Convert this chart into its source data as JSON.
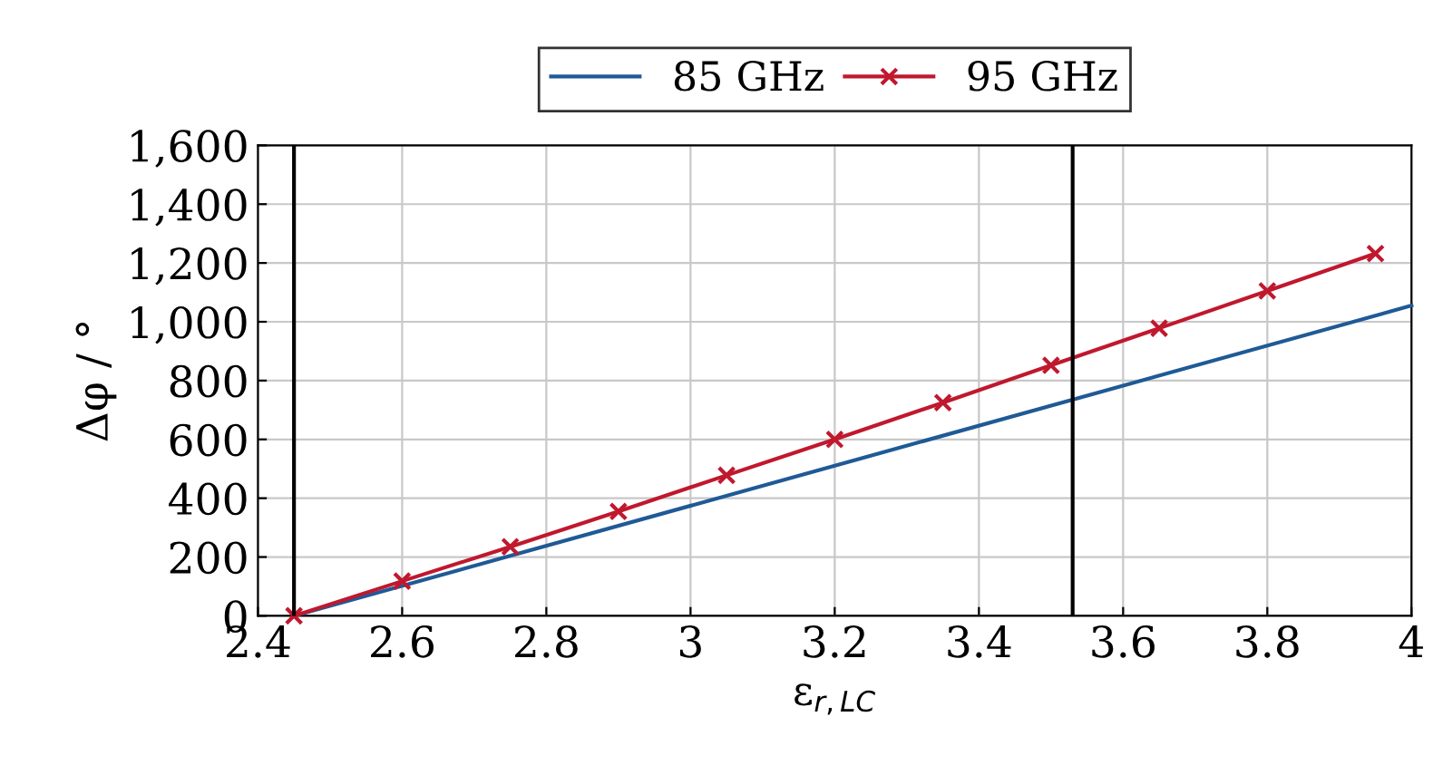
{
  "chart_data": {
    "type": "line",
    "xlabel": "ε$_{r,LC}$",
    "ylabel": "Δφ / °",
    "series": [
      {
        "name": "85 GHz",
        "color": "#1f5a96",
        "marker": "none",
        "x": [
          2.45,
          4
        ],
        "values": [
          0,
          1055
        ]
      },
      {
        "name": "95 GHz",
        "color": "#c0182e",
        "marker": "cross",
        "x": [
          2.45,
          2.6,
          2.75,
          2.9,
          3.05,
          3.2,
          3.35,
          3.5,
          3.65,
          3.8,
          3.95
        ],
        "values": [
          0,
          118,
          235,
          355,
          478,
          600,
          725,
          852,
          978,
          1105,
          1232
        ]
      }
    ],
    "xlim": [
      2.4,
      4
    ],
    "xticks": [
      2.4,
      2.6,
      2.8,
      3,
      3.2,
      3.4,
      3.6,
      3.8,
      4
    ],
    "ylim": [
      0,
      1600
    ],
    "yticks": [
      0,
      200,
      400,
      600,
      800,
      {
        "value": 1000,
        "label": "1,000"
      },
      {
        "value": 1200,
        "label": "1,200"
      },
      {
        "value": 1400,
        "label": "1,400"
      },
      {
        "value": 1600,
        "label": "1,600"
      }
    ],
    "ref_lines": [
      {
        "axis": "x",
        "value": 2.45,
        "color": "#000000"
      },
      {
        "axis": "x",
        "value": 3.53,
        "color": "#000000"
      }
    ],
    "grid": true,
    "legend": "top",
    "line_style": "solid"
  }
}
